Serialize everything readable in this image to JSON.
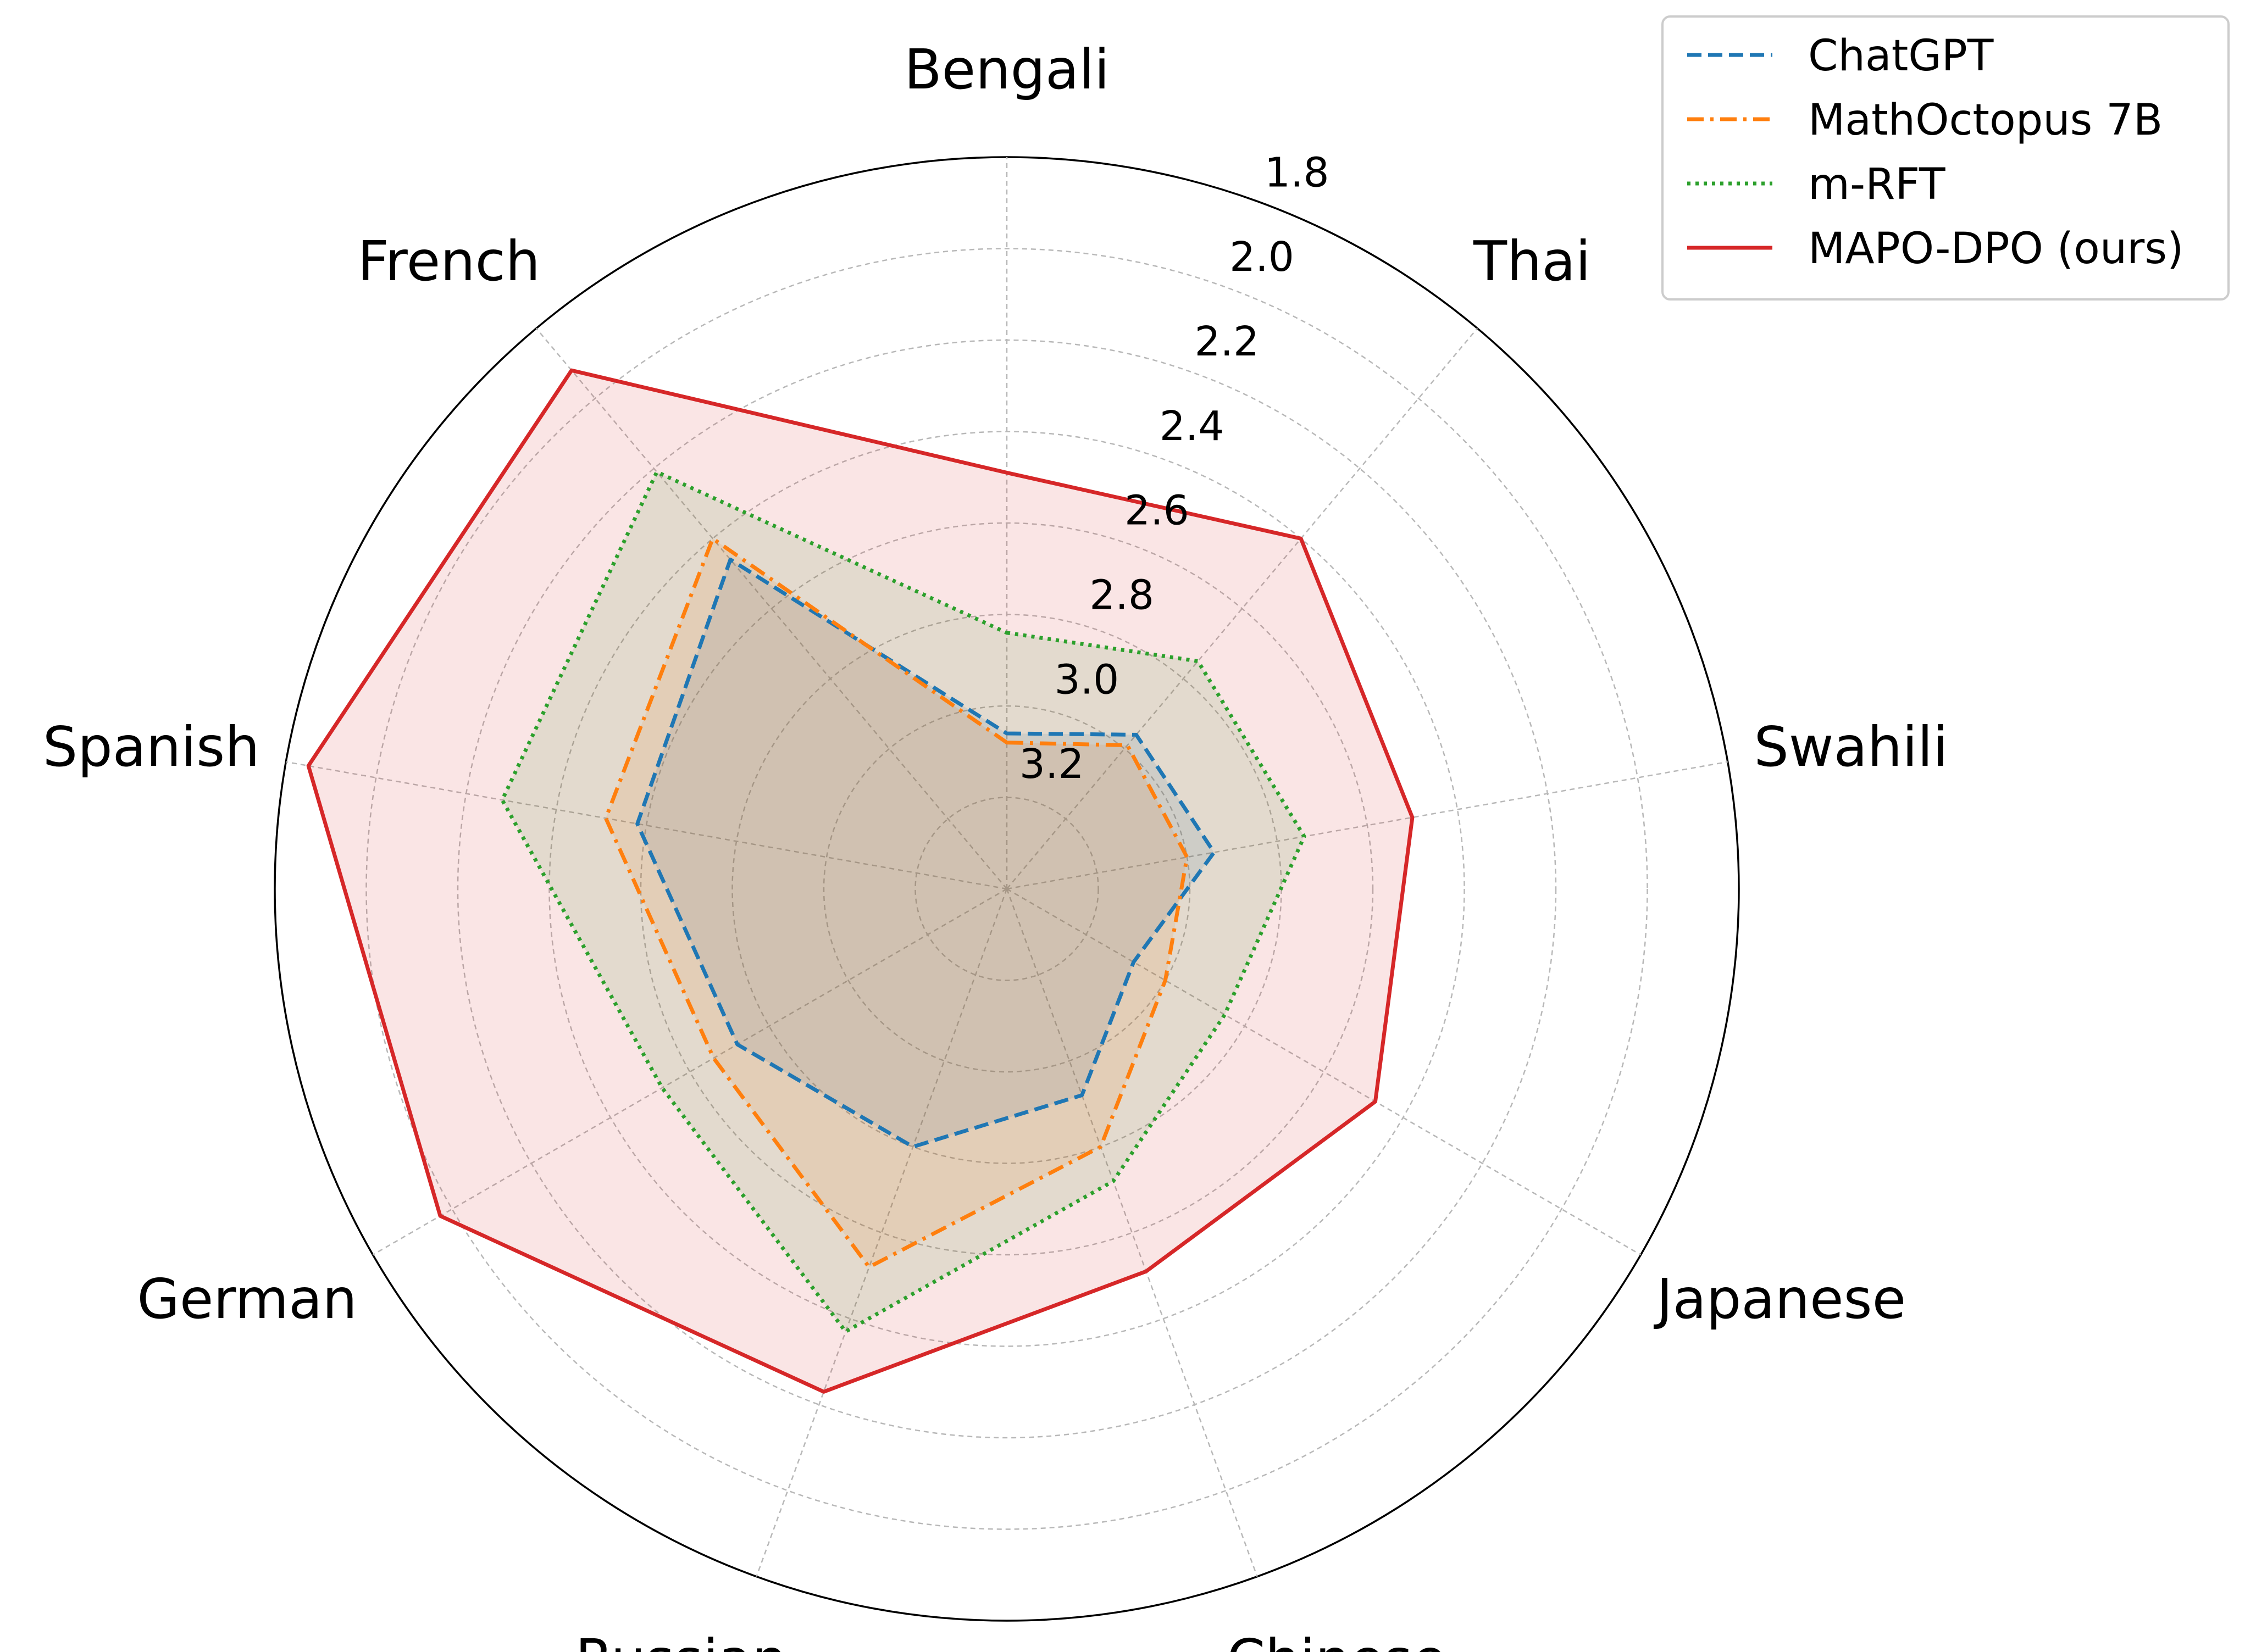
{
  "chart_data": {
    "type": "radar",
    "title": "",
    "axes": [
      "Bengali",
      "Thai",
      "Swahili",
      "Japanese",
      "Chinese",
      "Russian",
      "German",
      "Spanish",
      "French"
    ],
    "radial_ticks": [
      "1.8",
      "2.0",
      "2.2",
      "2.4",
      "2.6",
      "2.8",
      "3.0",
      "3.2"
    ],
    "radial_range": [
      3.4,
      1.8
    ],
    "radial_direction": "inverted (higher values toward center)",
    "grid": true,
    "legend_position": "top-right",
    "series": [
      {
        "name": "ChatGPT",
        "style": "dashed",
        "color": "#1f77b4",
        "fill": "#1f77b4",
        "values": [
          3.06,
          2.96,
          2.94,
          3.08,
          2.92,
          2.8,
          2.72,
          2.58,
          2.46
        ]
      },
      {
        "name": "MathOctopus 7B",
        "style": "dashdot",
        "color": "#ff7f0e",
        "fill": "#ff7f0e",
        "values": [
          3.08,
          2.99,
          3.0,
          3.0,
          2.8,
          2.52,
          2.66,
          2.51,
          2.4
        ]
      },
      {
        "name": "m-RFT",
        "style": "dotted",
        "color": "#2ca02c",
        "fill": "#2ca02c",
        "values": [
          2.84,
          2.75,
          2.74,
          2.85,
          2.72,
          2.37,
          2.53,
          2.28,
          2.21
        ]
      },
      {
        "name": "MAPO-DPO (ours)",
        "style": "solid",
        "color": "#d62728",
        "fill": "#d62728",
        "values": [
          2.49,
          2.4,
          2.5,
          2.47,
          2.51,
          2.23,
          1.97,
          1.85,
          1.92
        ]
      }
    ]
  }
}
